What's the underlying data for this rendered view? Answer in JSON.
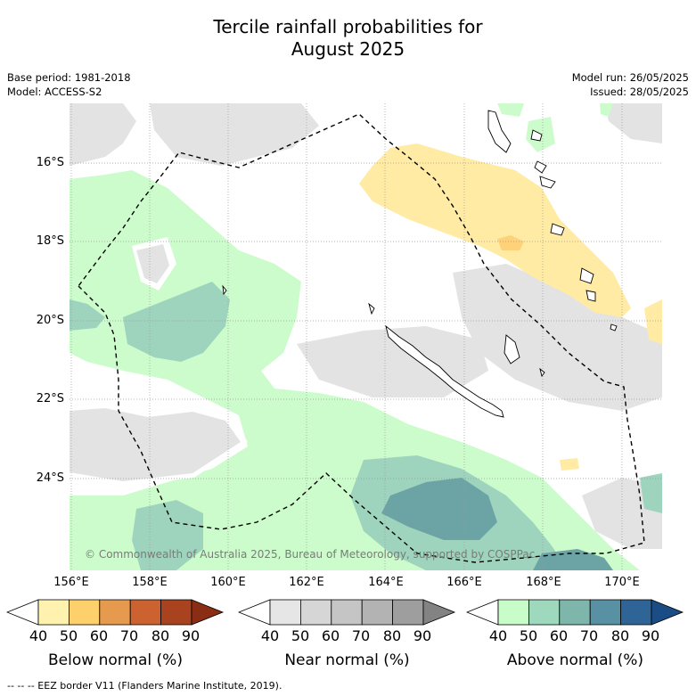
{
  "title_line1": "Tercile rainfall probabilities for",
  "title_line2": "August 2025",
  "info_left": {
    "base_period": "Base period: 1981-2018",
    "model": "Model: ACCESS-S2"
  },
  "info_right": {
    "model_run": "Model run: 26/05/2025",
    "issued": "Issued: 28/05/2025"
  },
  "map": {
    "lat_labels": [
      "16°S",
      "18°S",
      "20°S",
      "22°S",
      "24°S"
    ],
    "lon_labels": [
      "156°E",
      "158°E",
      "160°E",
      "162°E",
      "164°E",
      "166°E",
      "168°E",
      "170°E"
    ],
    "copyright": "© Commonwealth of Australia 2025, Bureau of Meteorology, supported by COSPPac",
    "colors": {
      "near_normal_fill": "#e3e3e3",
      "above_50": "#ccfccc",
      "above_60": "#9ed4bd",
      "above_70": "#6ca4a6",
      "below_50": "#ffeba4",
      "below_60": "#ffd27a"
    }
  },
  "legends": [
    {
      "label": "Below normal (%)",
      "ticks": [
        "40",
        "50",
        "60",
        "70",
        "80",
        "90"
      ],
      "colors": [
        "#ffffff",
        "#fff2ae",
        "#fdd06b",
        "#e69a4d",
        "#cc6230",
        "#a9431f",
        "#8a2d14"
      ]
    },
    {
      "label": "Near normal (%)",
      "ticks": [
        "40",
        "50",
        "60",
        "70",
        "80",
        "90"
      ],
      "colors": [
        "#ffffff",
        "#e6e6e6",
        "#d6d6d6",
        "#c5c5c5",
        "#b3b3b3",
        "#9e9e9e",
        "#838383"
      ]
    },
    {
      "label": "Above normal (%)",
      "ticks": [
        "40",
        "50",
        "60",
        "70",
        "80",
        "90"
      ],
      "colors": [
        "#ffffff",
        "#c8fcc8",
        "#9fd9bd",
        "#7fb6ab",
        "#5891a3",
        "#2f6496",
        "#1a4d85"
      ]
    }
  ],
  "footer": "--  --  -- EEZ border V11 (Flanders Marine Institute, 2019)."
}
